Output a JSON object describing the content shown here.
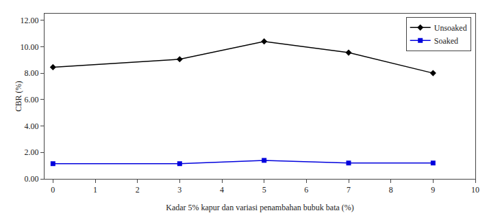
{
  "chart_data": {
    "type": "line",
    "xlabel": "Kadar 5% kapur dan variasi penambahan bubuk bata (%)",
    "ylabel": "CBR (%)",
    "x": [
      0,
      3,
      5,
      7,
      9
    ],
    "series": [
      {
        "name": "Unsoaked",
        "color": "#000000",
        "marker": "diamond",
        "values": [
          8.45,
          9.05,
          10.4,
          9.55,
          8.0
        ]
      },
      {
        "name": "Soaked",
        "color": "#0000dd",
        "marker": "square",
        "values": [
          1.15,
          1.15,
          1.4,
          1.2,
          1.2
        ]
      }
    ],
    "xlim": [
      -0.2,
      10
    ],
    "ylim": [
      0,
      12.5
    ],
    "xticks": [
      0,
      1,
      2,
      3,
      4,
      5,
      6,
      7,
      8,
      9,
      10
    ],
    "yticks": [
      {
        "value": 0,
        "label": "0.00"
      },
      {
        "value": 2,
        "label": "2.00"
      },
      {
        "value": 4,
        "label": "4.00"
      },
      {
        "value": 6,
        "label": "6.00"
      },
      {
        "value": 8,
        "label": "8.00"
      },
      {
        "value": 10,
        "label": "10.00"
      },
      {
        "value": 12,
        "label": "12.00"
      }
    ],
    "grid": false,
    "legend": "upper right"
  }
}
